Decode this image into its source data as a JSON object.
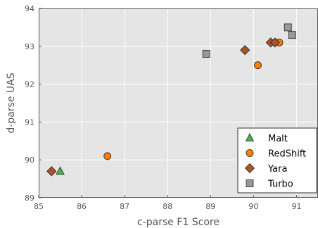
{
  "chart_data": {
    "type": "scatter",
    "xlabel": "c-parse F1 Score",
    "ylabel": "d-parse UAS",
    "xlim": [
      85,
      91.5
    ],
    "ylim": [
      89,
      94
    ],
    "xticks": [
      "85",
      "86",
      "87",
      "88",
      "89",
      "90",
      "91"
    ],
    "yticks": [
      "89",
      "90",
      "91",
      "92",
      "93",
      "94"
    ],
    "grid": true,
    "legend_position": "bottom-right",
    "series": [
      {
        "name": "Malt",
        "marker": "triangle",
        "color": "#4daf4a",
        "points": [
          {
            "x": 85.5,
            "y": 89.7
          }
        ]
      },
      {
        "name": "RedShift",
        "marker": "circle",
        "color": "#ff7f00",
        "points": [
          {
            "x": 86.6,
            "y": 90.1
          },
          {
            "x": 90.1,
            "y": 92.5
          },
          {
            "x": 90.6,
            "y": 93.1
          }
        ]
      },
      {
        "name": "Yara",
        "marker": "diamond",
        "color": "#a65628",
        "points": [
          {
            "x": 85.3,
            "y": 89.7
          },
          {
            "x": 89.8,
            "y": 92.9
          },
          {
            "x": 90.4,
            "y": 93.1
          },
          {
            "x": 90.5,
            "y": 93.1
          }
        ]
      },
      {
        "name": "Turbo",
        "marker": "square",
        "color": "#999999",
        "points": [
          {
            "x": 88.9,
            "y": 92.8
          },
          {
            "x": 90.8,
            "y": 93.5
          },
          {
            "x": 90.9,
            "y": 93.3
          }
        ]
      }
    ]
  }
}
